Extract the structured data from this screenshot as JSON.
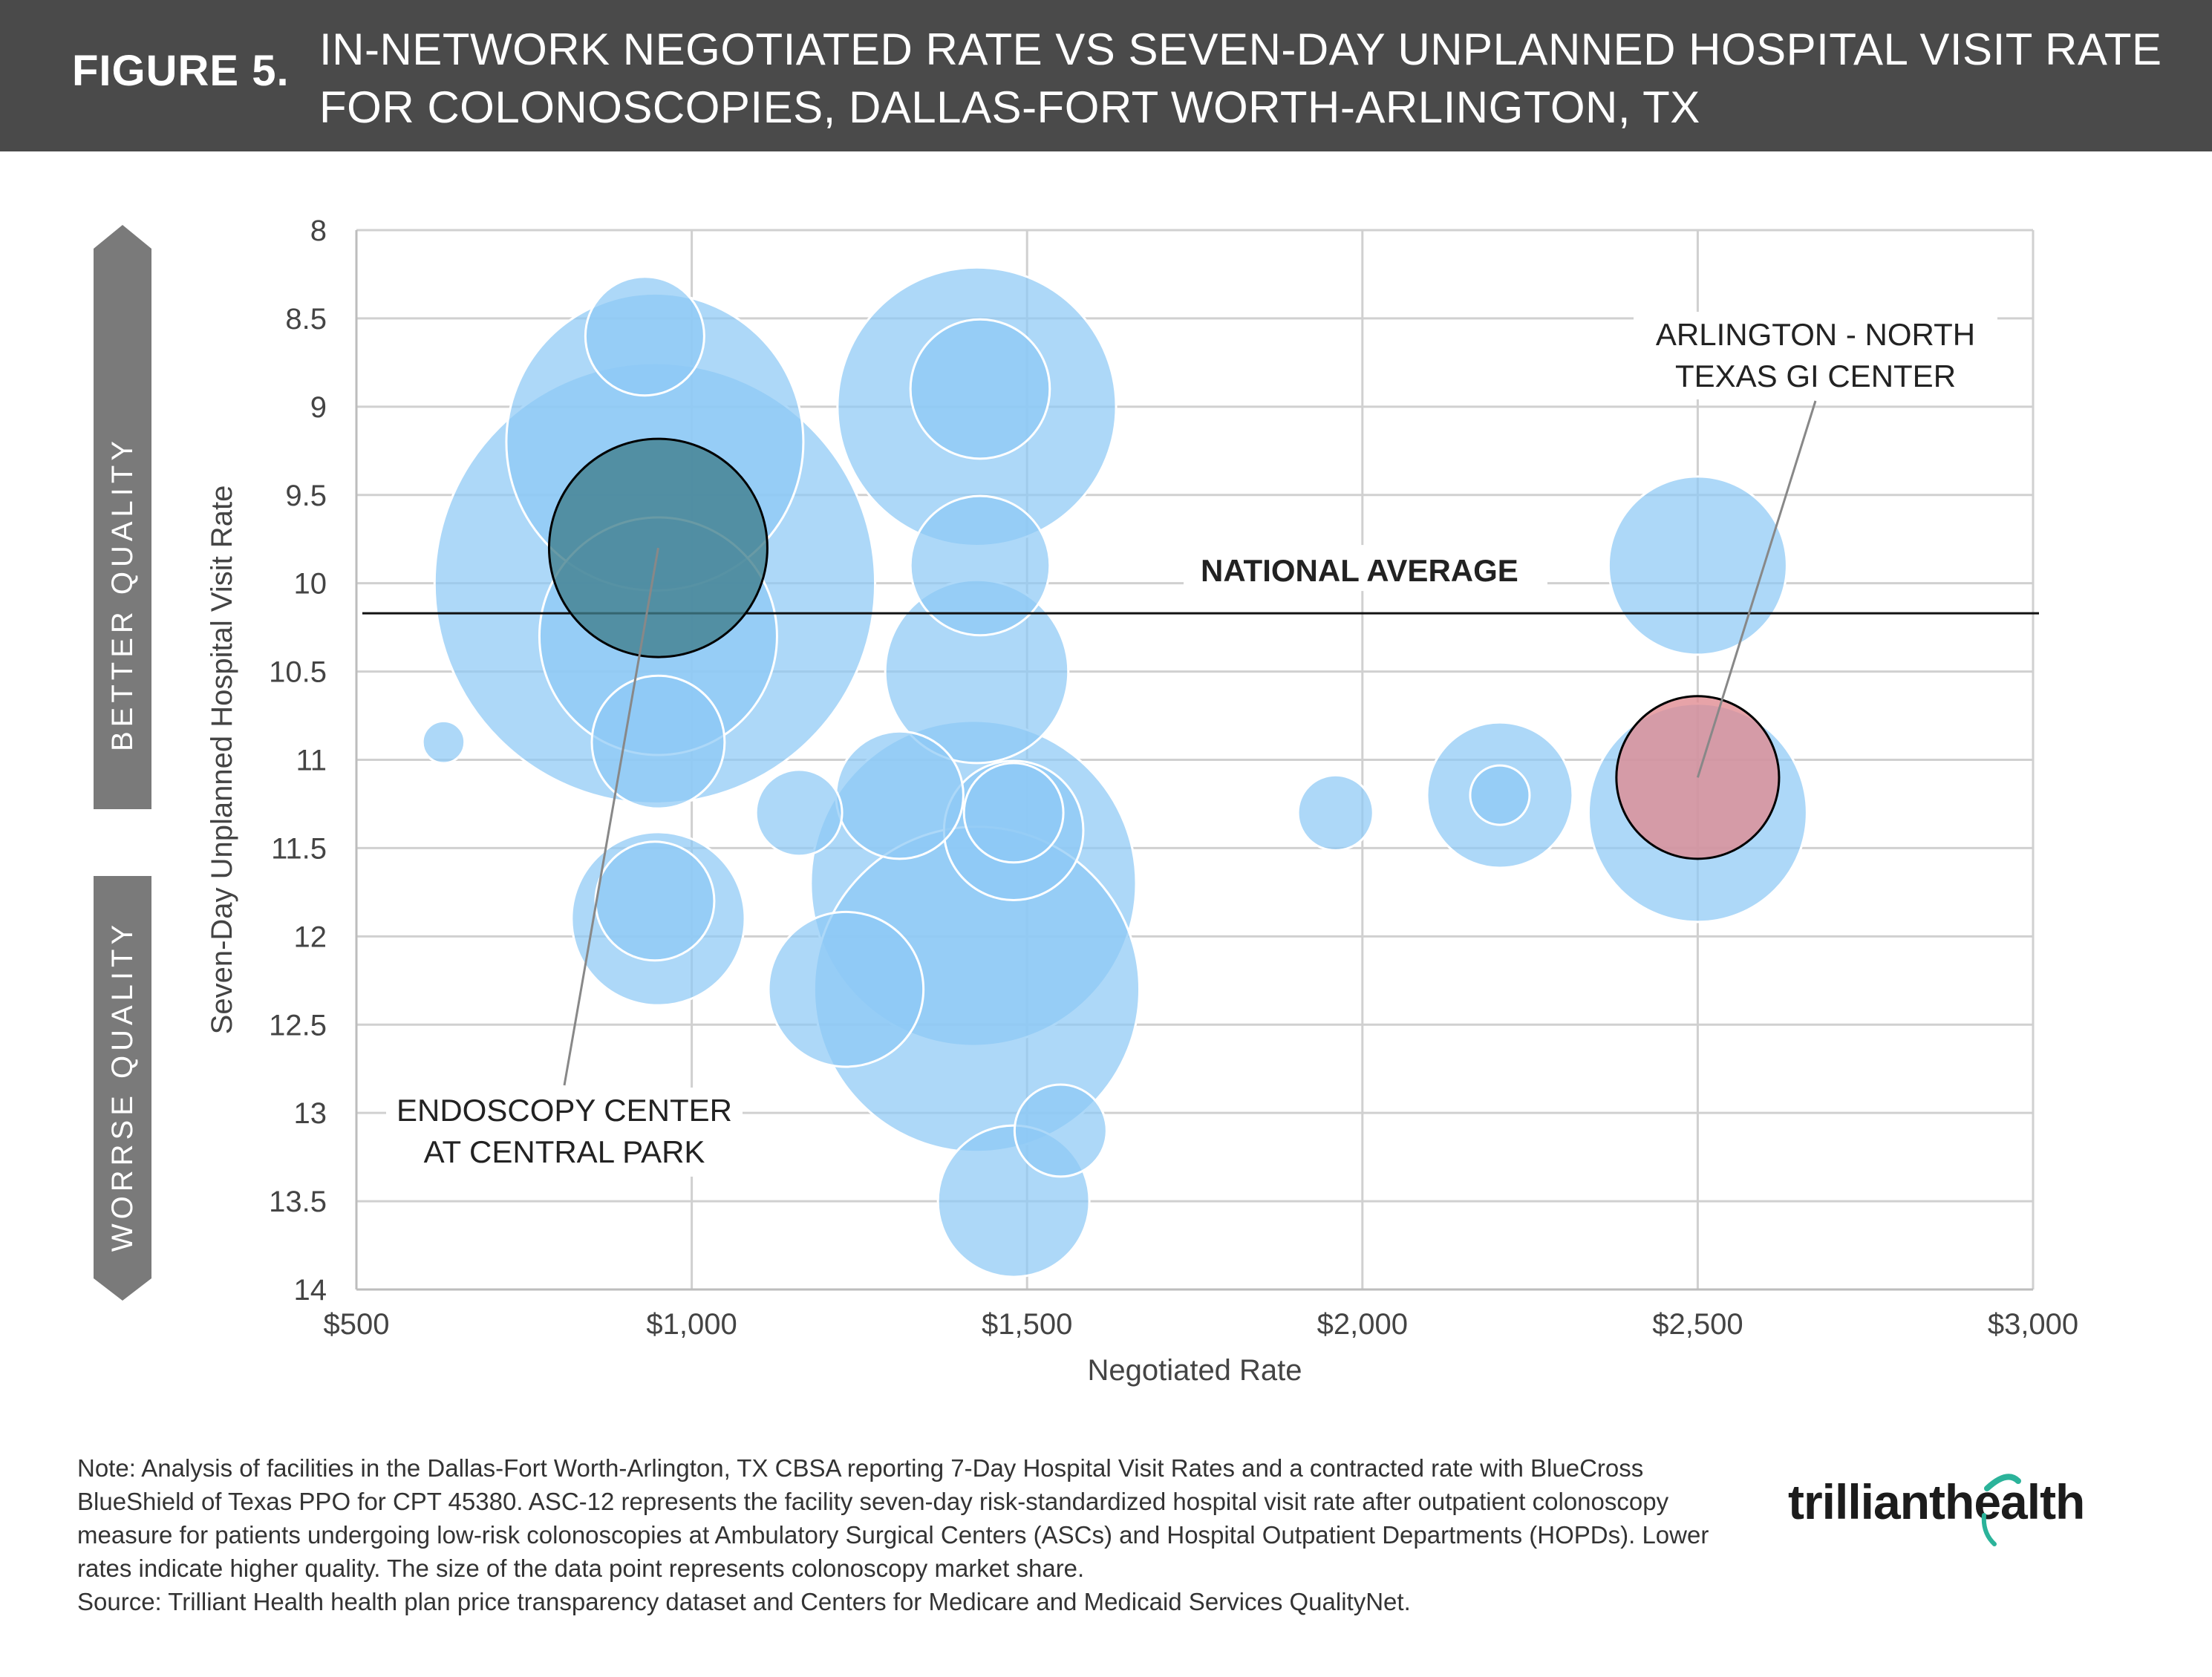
{
  "figure_label": "FIGURE 5.",
  "title_lines": [
    "IN-NETWORK NEGOTIATED RATE VS SEVEN-DAY UNPLANNED HOSPITAL VISIT RATE",
    "FOR COLONOSCOPIES, DALLAS-FORT WORTH-ARLINGTON, TX"
  ],
  "quality_labels": {
    "better": "BETTER QUALITY",
    "worse": "WORRSE QUALITY"
  },
  "note": "Note: Analysis of facilities in the Dallas-Fort Worth-Arlington, TX CBSA reporting 7-Day Hospital Visit Rates and a contracted rate with BlueCross BlueShield of Texas PPO for CPT 45380. ASC-12 represents the facility seven-day risk-standardized hospital visit rate after outpatient colonoscopy measure for patients undergoing low-risk colonoscopies at Ambulatory Surgical Centers (ASCs) and Hospital Outpatient Departments (HOPDs). Lower rates indicate higher quality. The size of the data point represents colonoscopy market share.",
  "source": "Source: Trilliant Health health plan price transparency dataset and Centers for Medicare and Medicaid Services QualityNet.",
  "logo": {
    "part1": "trilliant",
    "part2": "health",
    "accent_color": "#2bb39a"
  },
  "colors": {
    "header_bg": "#4a4a4a",
    "bubble_fill": "#8ec9f5",
    "bubble_dense": "#6fb6ee",
    "highlight_central_park": "#3f7d8c",
    "highlight_arlington": "#e0898f",
    "gridline": "#d0d0d0"
  },
  "chart_data": {
    "type": "scatter",
    "subtype": "bubble",
    "xlabel": "Negotiated Rate",
    "ylabel": "Seven-Day Unplanned Hospital Visit Rate",
    "xlim": [
      500,
      3000
    ],
    "ylim": [
      8,
      14
    ],
    "y_inverted": true,
    "x_ticks": [
      500,
      1000,
      1500,
      2000,
      2500,
      3000
    ],
    "x_tick_labels": [
      "$500",
      "$1,000",
      "$1,500",
      "$2,000",
      "$2,500",
      "$3,000"
    ],
    "y_ticks": [
      8,
      8.5,
      9,
      9.5,
      10,
      10.5,
      11,
      11.5,
      12,
      12.5,
      13,
      13.5,
      14
    ],
    "y_tick_labels": [
      "8",
      "8.5",
      "9",
      "9.5",
      "10",
      "10.5",
      "11",
      "11.5",
      "12",
      "12.5",
      "13",
      "13.5",
      "14"
    ],
    "grid": true,
    "reference_line": {
      "label": "NATIONAL AVERAGE",
      "y": 10.17
    },
    "size_meaning": "colonoscopy market share (relative)",
    "points": [
      {
        "x": 930,
        "y": 8.6,
        "size": 4
      },
      {
        "x": 945,
        "y": 9.2,
        "size": 25
      },
      {
        "x": 945,
        "y": 10.0,
        "size": 55
      },
      {
        "x": 950,
        "y": 10.3,
        "size": 16
      },
      {
        "x": 950,
        "y": 10.9,
        "size": 5
      },
      {
        "x": 950,
        "y": 11.9,
        "size": 8.5
      },
      {
        "x": 945,
        "y": 11.8,
        "size": 4
      },
      {
        "x": 630,
        "y": 10.9,
        "size": 0.5
      },
      {
        "x": 1160,
        "y": 11.3,
        "size": 2.1
      },
      {
        "x": 1310,
        "y": 11.2,
        "size": 4.6
      },
      {
        "x": 1230,
        "y": 12.3,
        "size": 6.8
      },
      {
        "x": 1425,
        "y": 9.0,
        "size": 22
      },
      {
        "x": 1430,
        "y": 8.9,
        "size": 5.5
      },
      {
        "x": 1430,
        "y": 9.9,
        "size": 5.5
      },
      {
        "x": 1425,
        "y": 10.5,
        "size": 9.5
      },
      {
        "x": 1420,
        "y": 11.7,
        "size": 30
      },
      {
        "x": 1425,
        "y": 12.3,
        "size": 30
      },
      {
        "x": 1480,
        "y": 11.4,
        "size": 5.5
      },
      {
        "x": 1480,
        "y": 11.3,
        "size": 2.8
      },
      {
        "x": 1480,
        "y": 13.5,
        "size": 6.5
      },
      {
        "x": 1550,
        "y": 13.1,
        "size": 2.4
      },
      {
        "x": 1960,
        "y": 11.3,
        "size": 1.6
      },
      {
        "x": 2205,
        "y": 11.2,
        "size": 6.0
      },
      {
        "x": 2205,
        "y": 11.2,
        "size": 1.0
      },
      {
        "x": 2500,
        "y": 9.9,
        "size": 9.0
      },
      {
        "x": 2500,
        "y": 11.3,
        "size": 13.5
      }
    ],
    "highlights": [
      {
        "name": "ENDOSCOPY CENTER AT CENTRAL PARK",
        "label_lines": [
          "ENDOSCOPY CENTER",
          "AT CENTRAL PARK"
        ],
        "x": 950,
        "y": 9.8,
        "size": 13.5,
        "label_position": "bottom-left"
      },
      {
        "name": "ARLINGTON - NORTH TEXAS GI CENTER",
        "label_lines": [
          "ARLINGTON - NORTH",
          "TEXAS GI CENTER"
        ],
        "x": 2500,
        "y": 11.1,
        "size": 7.5,
        "label_position": "top-right"
      }
    ]
  }
}
